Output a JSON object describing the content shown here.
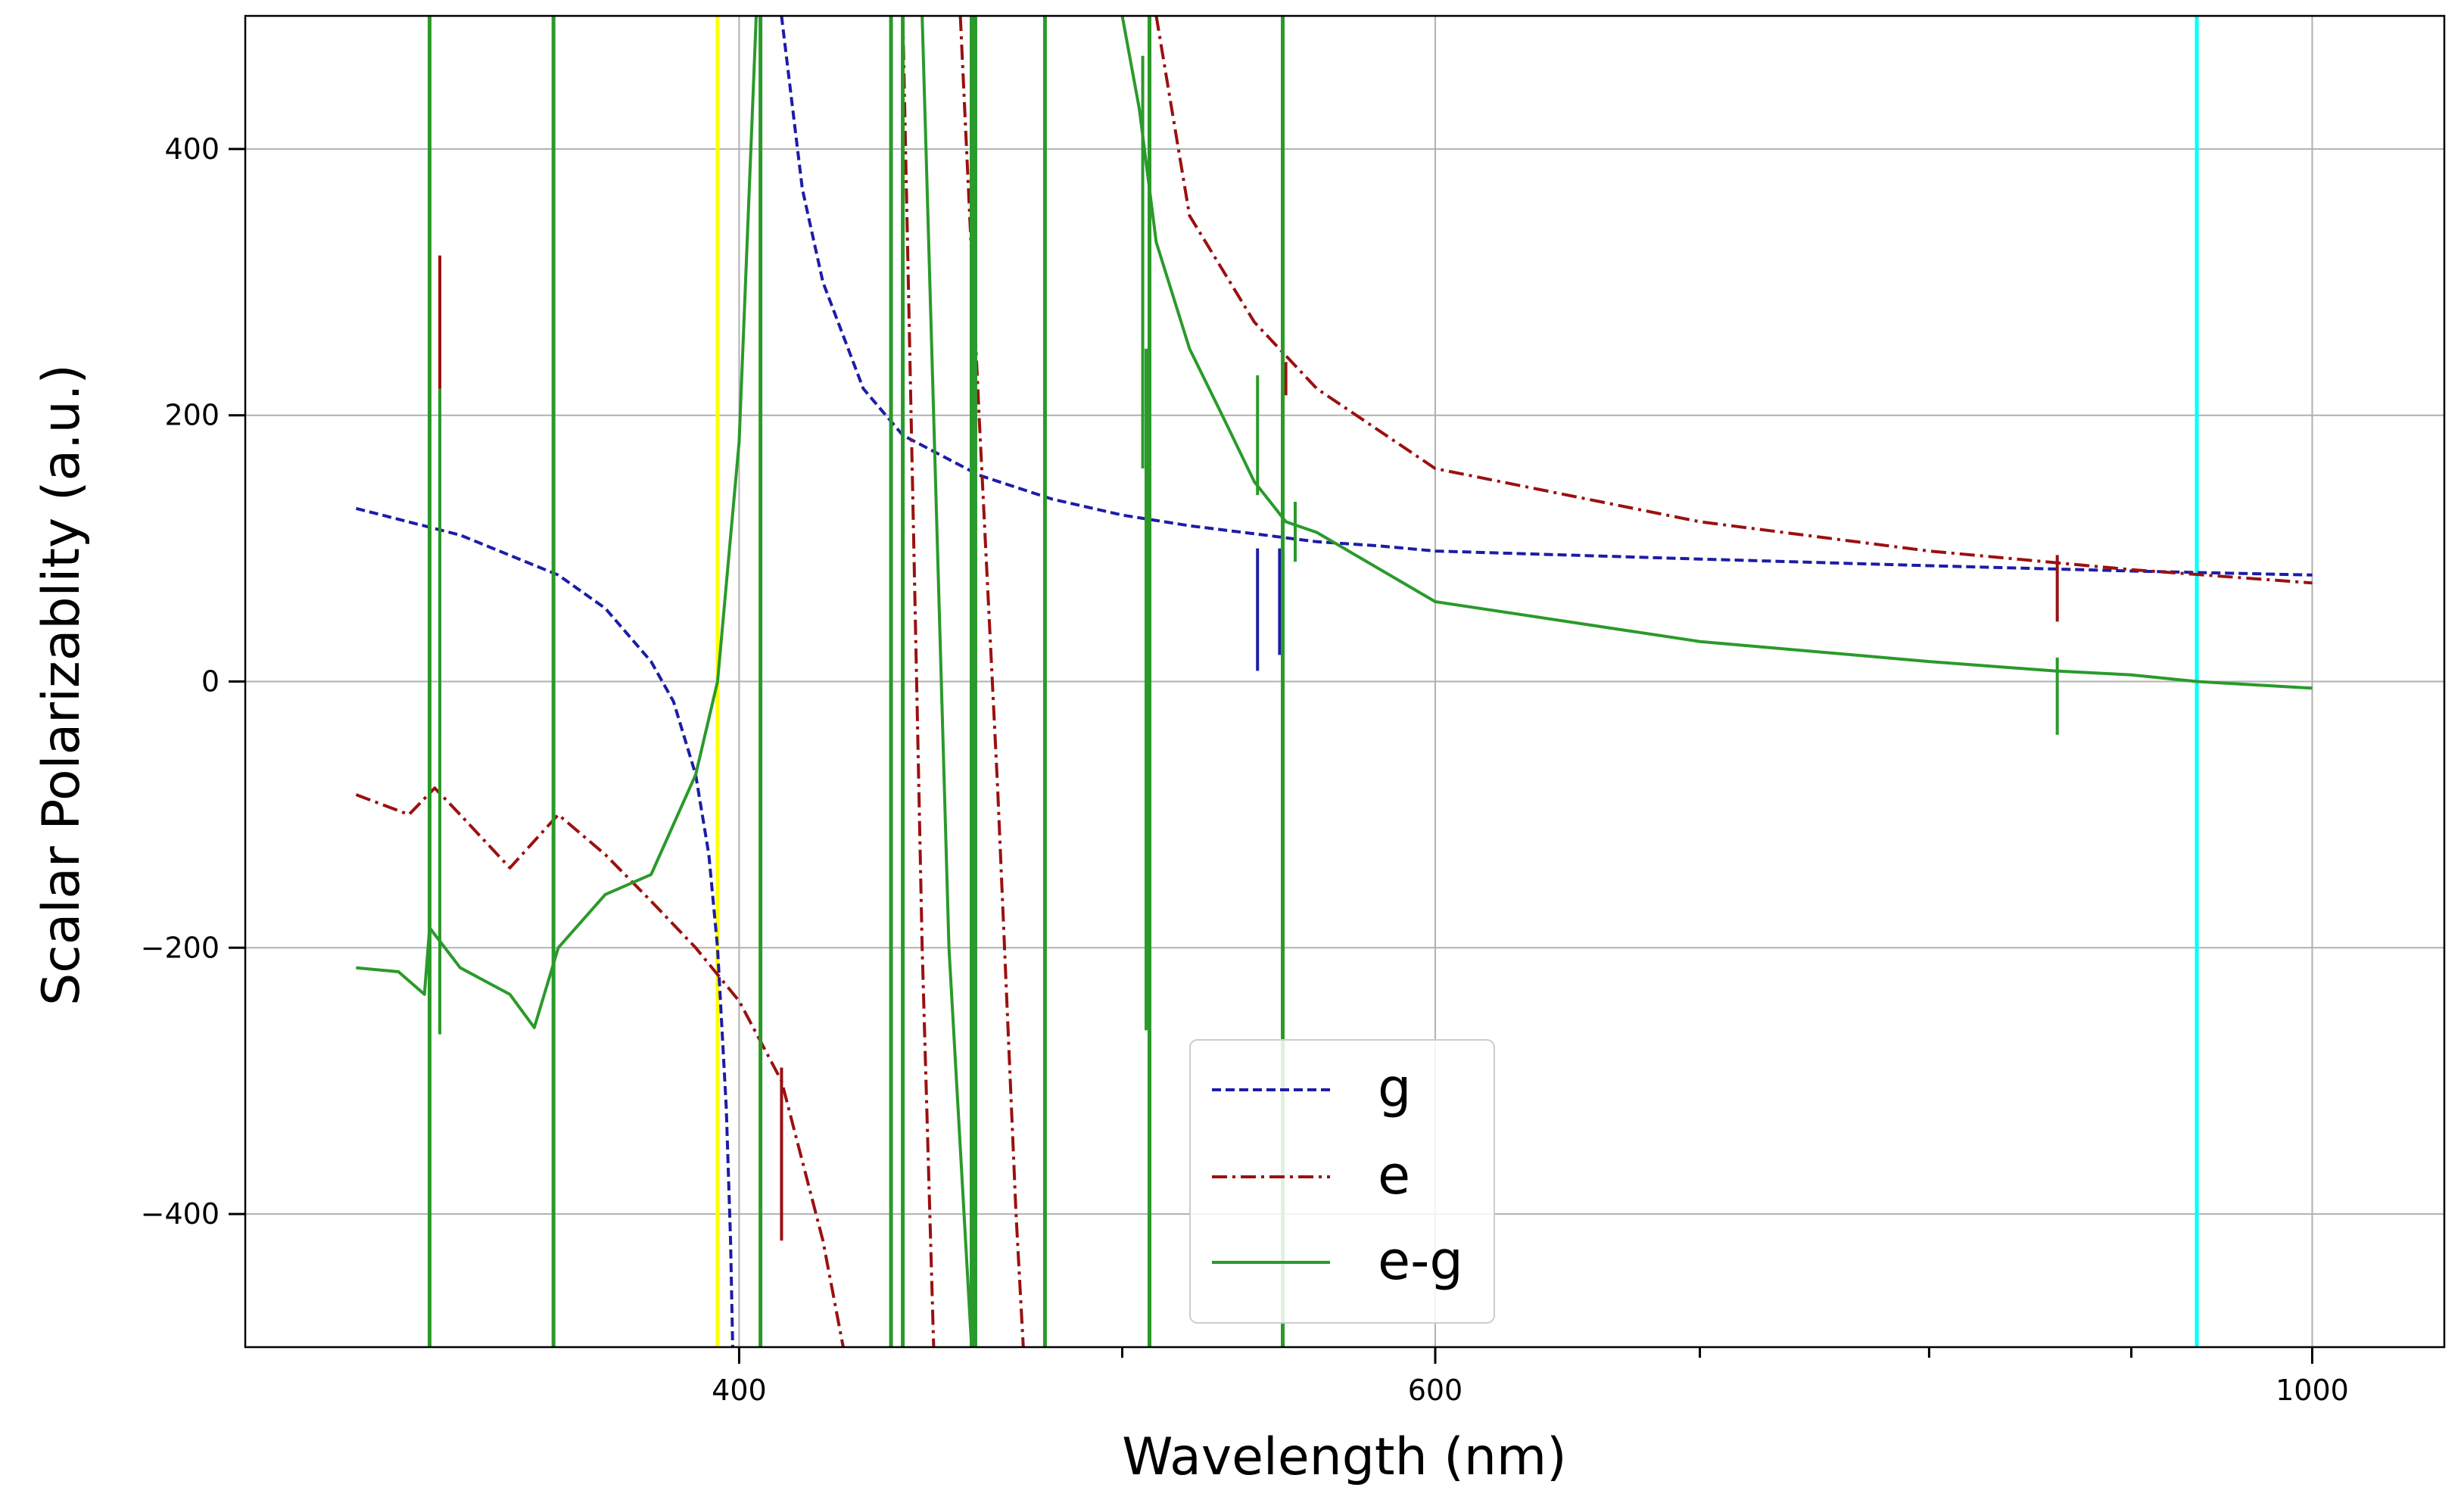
{
  "chart_data": {
    "type": "line",
    "title": "",
    "xlabel": "Wavelength (nm)",
    "ylabel": "Scalar Polarizablity (a.u.)",
    "xscale": "log",
    "xlim": [
      300,
      1080
    ],
    "ylim": [
      -500,
      500
    ],
    "grid": true,
    "legend_position": "bottom-center",
    "x_tick_labels": [
      {
        "value": 400,
        "label": "400"
      },
      {
        "value": 600,
        "label": "600"
      },
      {
        "value": 1000,
        "label": "1000"
      }
    ],
    "x_minor_ticks": [
      500,
      700,
      800,
      900
    ],
    "y_ticks": [
      400,
      200,
      0,
      -200,
      -400
    ],
    "y_tick_labels": [
      "400",
      "200",
      "0",
      "−200",
      "−400"
    ],
    "reference_lines": [
      {
        "name": "yellow-line",
        "x": 395,
        "color": "#ffff00"
      },
      {
        "name": "cyan-line",
        "x": 935,
        "color": "#00ffff"
      }
    ],
    "series": [
      {
        "name": "g",
        "color": "#1c1ca8",
        "style": "dashed",
        "x": [
          320,
          340,
          360,
          370,
          380,
          385,
          390,
          393,
          395,
          397,
          398,
          398.5,
          null,
          410,
          415,
          420,
          430,
          440,
          460,
          480,
          500,
          520,
          540,
          560,
          580,
          600,
          700,
          800,
          900,
          1000
        ],
        "y": [
          130,
          110,
          80,
          55,
          15,
          -15,
          -70,
          -130,
          -200,
          -320,
          -420,
          -500,
          null,
          500,
          370,
          300,
          220,
          185,
          155,
          137,
          125,
          117,
          111,
          105,
          102,
          98,
          92,
          87,
          83,
          80
        ],
        "spikes": [
          {
            "x": 541,
            "y0": 100,
            "y1": 8
          },
          {
            "x": 548,
            "y0": 100,
            "y1": 20
          }
        ]
      },
      {
        "name": "e",
        "color": "#9b1010",
        "style": "dashdot",
        "x": [
          320,
          330,
          335,
          340,
          350,
          360,
          370,
          380,
          390,
          400,
          410,
          420,
          425,
          null,
          440,
          445,
          448,
          null,
          455,
          460,
          465,
          470,
          472,
          null,
          510,
          520,
          540,
          560,
          600,
          700,
          800,
          900,
          1000
        ],
        "y": [
          -85,
          -100,
          -80,
          -100,
          -140,
          -100,
          -130,
          -165,
          -200,
          -240,
          -300,
          -420,
          -500,
          null,
          500,
          -200,
          -500,
          null,
          500,
          200,
          -80,
          -400,
          -500,
          null,
          500,
          350,
          270,
          220,
          160,
          120,
          98,
          84,
          74
        ],
        "spikes": [
          {
            "x": 336,
            "y0": -40,
            "y1": 320
          },
          {
            "x": 410,
            "y0": -420,
            "y1": -290
          },
          {
            "x": 862,
            "y0": 45,
            "y1": 95
          },
          {
            "x": 550,
            "y0": 215,
            "y1": 240
          }
        ]
      },
      {
        "name": "e-g",
        "color": "#2a9a2a",
        "style": "solid",
        "x": [
          320,
          328,
          333,
          334,
          340,
          350,
          355,
          360,
          370,
          380,
          390,
          395,
          400,
          404,
          null,
          445,
          452,
          458,
          null,
          500,
          505,
          510,
          520,
          530,
          540,
          545,
          550,
          560,
          600,
          700,
          800,
          860,
          900,
          935,
          1000
        ],
        "y": [
          -215,
          -218,
          -235,
          -185,
          -215,
          -235,
          -260,
          -200,
          -160,
          -145,
          -70,
          0,
          180,
          500,
          null,
          500,
          -200,
          -500,
          null,
          500,
          430,
          330,
          250,
          200,
          150,
          135,
          120,
          112,
          60,
          30,
          15,
          8,
          5,
          0,
          -5
        ],
        "spikes": [
          {
            "x": 336,
            "y0": -265,
            "y1": 220
          },
          {
            "x": 506,
            "y0": 160,
            "y1": 470
          },
          {
            "x": 507,
            "y0": -262,
            "y1": 250
          },
          {
            "x": 541,
            "y0": 140,
            "y1": 230
          },
          {
            "x": 862,
            "y0": -40,
            "y1": 18
          },
          {
            "x": 553,
            "y0": 90,
            "y1": 135
          }
        ],
        "full_height_lines": [
          334,
          359,
          405,
          437,
          440,
          458,
          459,
          478,
          508,
          549
        ]
      }
    ]
  }
}
